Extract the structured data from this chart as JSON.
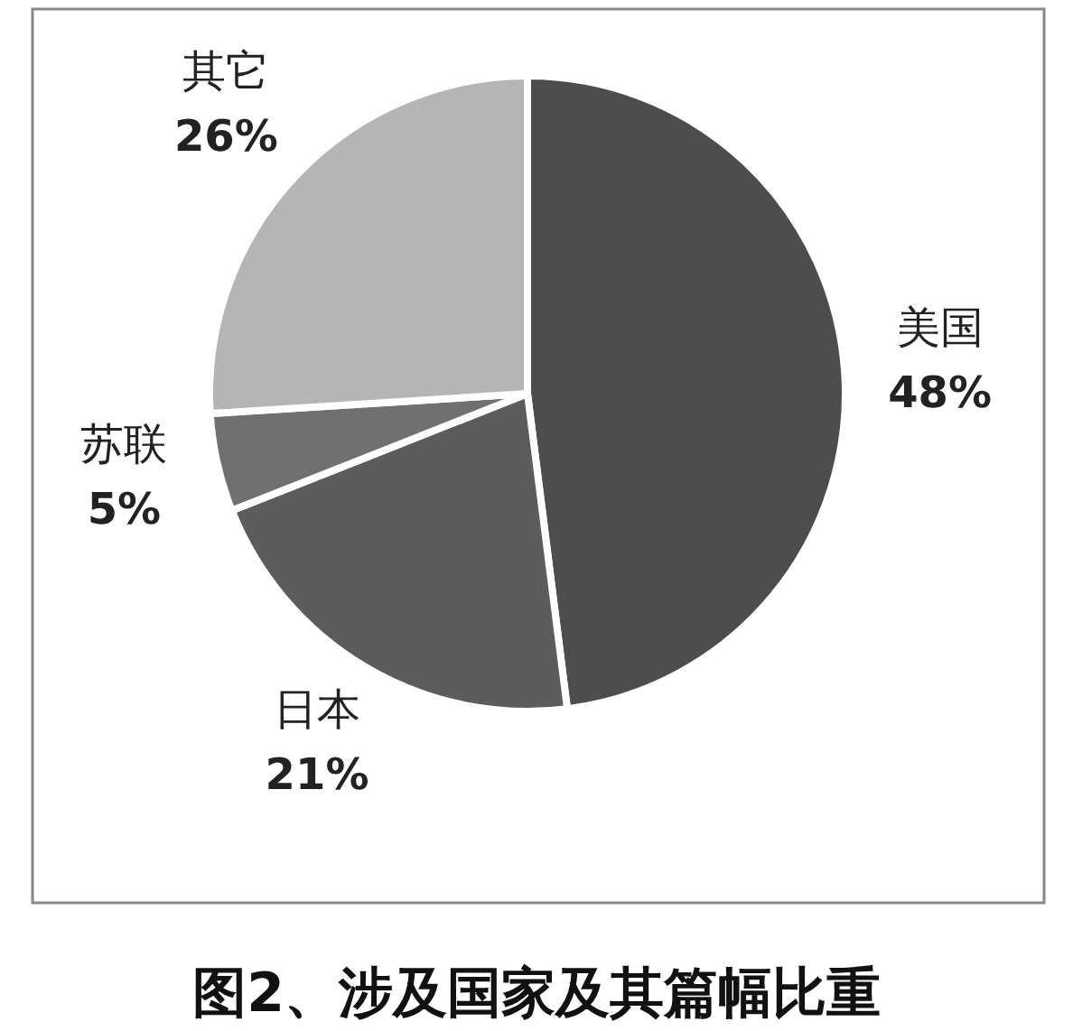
{
  "chart_data": {
    "type": "pie",
    "title": "图2、涉及国家及其篇幅比重",
    "categories": [
      "美国",
      "日本",
      "苏联",
      "其它"
    ],
    "values": [
      48,
      21,
      5,
      26
    ],
    "value_labels": [
      "48%",
      "21%",
      "5%",
      "26%"
    ],
    "colors": [
      "#4d4d4d",
      "#5c5c5c",
      "#707070",
      "#b5b5b5"
    ]
  }
}
